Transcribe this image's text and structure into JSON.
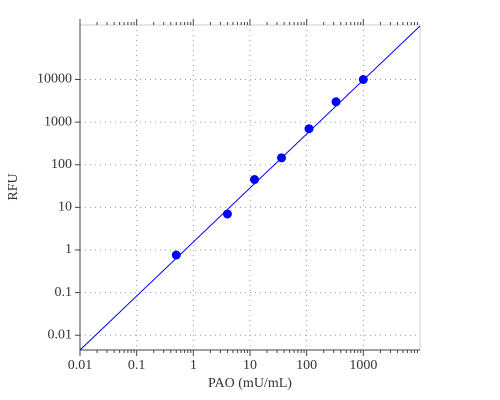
{
  "chart_data": {
    "type": "scatter",
    "x_label": "PAO (mU/mL)",
    "y_label": "RFU",
    "x_scale": "log",
    "y_scale": "log",
    "xlim": [
      0.01,
      10000
    ],
    "ylim": [
      0.0045,
      190000
    ],
    "xticks": [
      0.01,
      0.1,
      1,
      10,
      100,
      1000
    ],
    "yticks": [
      0.01,
      0.1,
      1,
      10,
      100,
      1000,
      10000
    ],
    "grid": true,
    "series": [
      {
        "type": "scatter",
        "color": "#0000ff",
        "x": [
          0.5,
          4,
          12,
          36,
          110,
          330,
          1000
        ],
        "values": [
          0.76,
          7,
          45,
          145,
          700,
          3000,
          10000
        ]
      },
      {
        "type": "line",
        "color": "#0000ff",
        "x": [
          0.01,
          10000
        ],
        "values": [
          0.0045,
          180000
        ]
      }
    ]
  }
}
